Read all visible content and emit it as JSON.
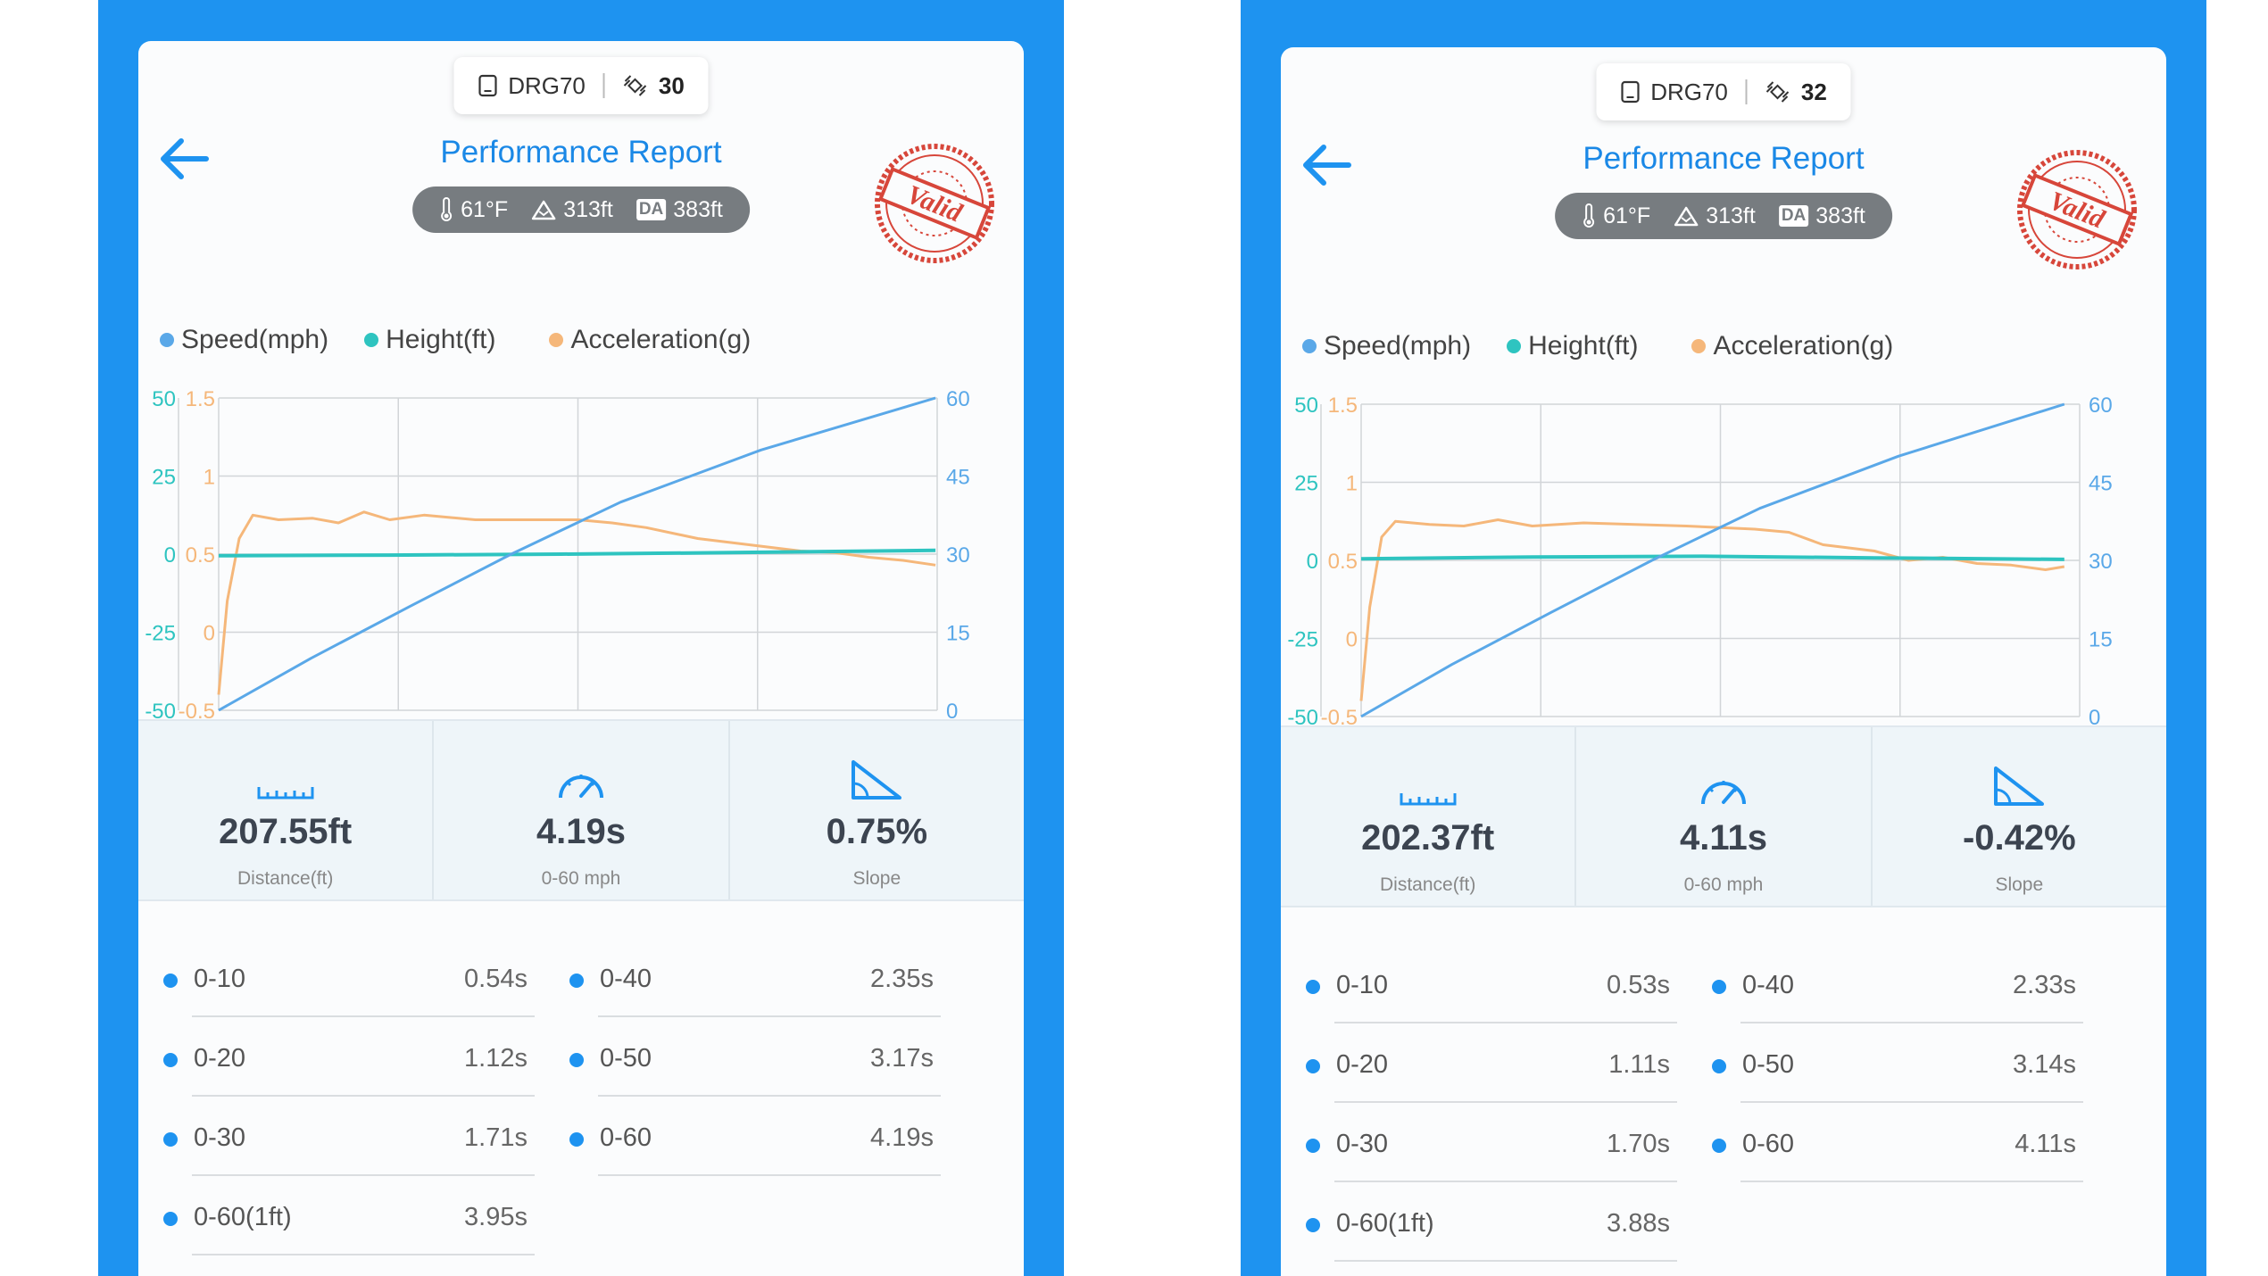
{
  "screens": [
    {
      "device": "DRG70",
      "satellites": "30",
      "title": "Performance Report",
      "conditions": {
        "temp": "61°F",
        "altitude": "313ft",
        "da_badge": "DA",
        "da": "383ft"
      },
      "stamp_text": "Valid",
      "legend": [
        "Speed(mph)",
        "Height(ft)",
        "Acceleration(g)"
      ],
      "distance": "207.55ft",
      "distance_label": "Distance(ft)",
      "time": "4.19s",
      "time_label": "0-60 mph",
      "slope": "0.75%",
      "slope_label": "Slope",
      "splits_left": [
        {
          "label": "0-10",
          "time": "0.54s"
        },
        {
          "label": "0-20",
          "time": "1.12s"
        },
        {
          "label": "0-30",
          "time": "1.71s"
        },
        {
          "label": "0-60(1ft)",
          "time": "3.95s"
        }
      ],
      "splits_right": [
        {
          "label": "0-40",
          "time": "2.35s"
        },
        {
          "label": "0-50",
          "time": "3.17s"
        },
        {
          "label": "0-60",
          "time": "4.19s"
        }
      ]
    },
    {
      "device": "DRG70",
      "satellites": "32",
      "title": "Performance Report",
      "conditions": {
        "temp": "61°F",
        "altitude": "313ft",
        "da_badge": "DA",
        "da": "383ft"
      },
      "stamp_text": "Valid",
      "legend": [
        "Speed(mph)",
        "Height(ft)",
        "Acceleration(g)"
      ],
      "distance": "202.37ft",
      "distance_label": "Distance(ft)",
      "time": "4.11s",
      "time_label": "0-60 mph",
      "slope": "-0.42%",
      "slope_label": "Slope",
      "splits_left": [
        {
          "label": "0-10",
          "time": "0.53s"
        },
        {
          "label": "0-20",
          "time": "1.11s"
        },
        {
          "label": "0-30",
          "time": "1.70s"
        },
        {
          "label": "0-60(1ft)",
          "time": "3.88s"
        }
      ],
      "splits_right": [
        {
          "label": "0-40",
          "time": "2.33s"
        },
        {
          "label": "0-50",
          "time": "3.14s"
        },
        {
          "label": "0-60",
          "time": "4.11s"
        }
      ]
    }
  ],
  "colors": {
    "speed": "#5aa8e8",
    "height": "#2ec4c0",
    "acceleration": "#f5b77a",
    "accent": "#1e93f0"
  },
  "chart_data": [
    {
      "type": "line",
      "xlim": [
        0,
        4.2
      ],
      "axes": {
        "height_ticks": [
          "50",
          "25",
          "0",
          "-25",
          "-50"
        ],
        "accel_ticks": [
          "1.5",
          "1",
          "0.5",
          "0",
          "-0.5"
        ],
        "speed_ticks": [
          "60",
          "45",
          "30",
          "15",
          "0"
        ]
      },
      "series": [
        {
          "name": "Speed(mph)",
          "axis": "speed",
          "points": [
            [
              0,
              0
            ],
            [
              0.54,
              10
            ],
            [
              1.12,
              20
            ],
            [
              1.71,
              30
            ],
            [
              2.35,
              40
            ],
            [
              3.17,
              50
            ],
            [
              4.19,
              60
            ]
          ]
        },
        {
          "name": "Height(ft)",
          "axis": "height",
          "points": [
            [
              0,
              -0.5
            ],
            [
              1,
              -0.3
            ],
            [
              2,
              0
            ],
            [
              3,
              0.5
            ],
            [
              4.19,
              1.2
            ]
          ]
        },
        {
          "name": "Acceleration(g)",
          "axis": "accel",
          "points": [
            [
              0,
              -0.4
            ],
            [
              0.05,
              0.2
            ],
            [
              0.12,
              0.6
            ],
            [
              0.2,
              0.75
            ],
            [
              0.35,
              0.72
            ],
            [
              0.55,
              0.73
            ],
            [
              0.7,
              0.7
            ],
            [
              0.85,
              0.77
            ],
            [
              1,
              0.72
            ],
            [
              1.2,
              0.75
            ],
            [
              1.5,
              0.72
            ],
            [
              1.8,
              0.72
            ],
            [
              2.1,
              0.72
            ],
            [
              2.3,
              0.7
            ],
            [
              2.5,
              0.67
            ],
            [
              2.8,
              0.6
            ],
            [
              3.1,
              0.56
            ],
            [
              3.4,
              0.52
            ],
            [
              3.6,
              0.51
            ],
            [
              3.8,
              0.48
            ],
            [
              4.0,
              0.46
            ],
            [
              4.19,
              0.43
            ]
          ]
        }
      ]
    },
    {
      "type": "line",
      "xlim": [
        0,
        4.2
      ],
      "axes": {
        "height_ticks": [
          "50",
          "25",
          "0",
          "-25",
          "-50"
        ],
        "accel_ticks": [
          "1.5",
          "1",
          "0.5",
          "0",
          "-0.5"
        ],
        "speed_ticks": [
          "60",
          "45",
          "30",
          "15",
          "0"
        ]
      },
      "series": [
        {
          "name": "Speed(mph)",
          "axis": "speed",
          "points": [
            [
              0,
              0
            ],
            [
              0.53,
              10
            ],
            [
              1.11,
              20
            ],
            [
              1.7,
              30
            ],
            [
              2.33,
              40
            ],
            [
              3.14,
              50
            ],
            [
              4.11,
              60
            ]
          ]
        },
        {
          "name": "Height(ft)",
          "axis": "height",
          "points": [
            [
              0,
              0.5
            ],
            [
              1,
              1.1
            ],
            [
              2,
              1.3
            ],
            [
              3,
              0.8
            ],
            [
              4.11,
              0.3
            ]
          ]
        },
        {
          "name": "Acceleration(g)",
          "axis": "accel",
          "points": [
            [
              0,
              -0.4
            ],
            [
              0.05,
              0.2
            ],
            [
              0.12,
              0.65
            ],
            [
              0.2,
              0.75
            ],
            [
              0.4,
              0.73
            ],
            [
              0.6,
              0.72
            ],
            [
              0.8,
              0.76
            ],
            [
              1,
              0.72
            ],
            [
              1.3,
              0.74
            ],
            [
              1.6,
              0.73
            ],
            [
              1.9,
              0.72
            ],
            [
              2.1,
              0.71
            ],
            [
              2.3,
              0.7
            ],
            [
              2.5,
              0.68
            ],
            [
              2.7,
              0.6
            ],
            [
              3.0,
              0.56
            ],
            [
              3.2,
              0.5
            ],
            [
              3.4,
              0.52
            ],
            [
              3.6,
              0.48
            ],
            [
              3.8,
              0.47
            ],
            [
              4.0,
              0.44
            ],
            [
              4.11,
              0.46
            ]
          ]
        }
      ]
    }
  ]
}
